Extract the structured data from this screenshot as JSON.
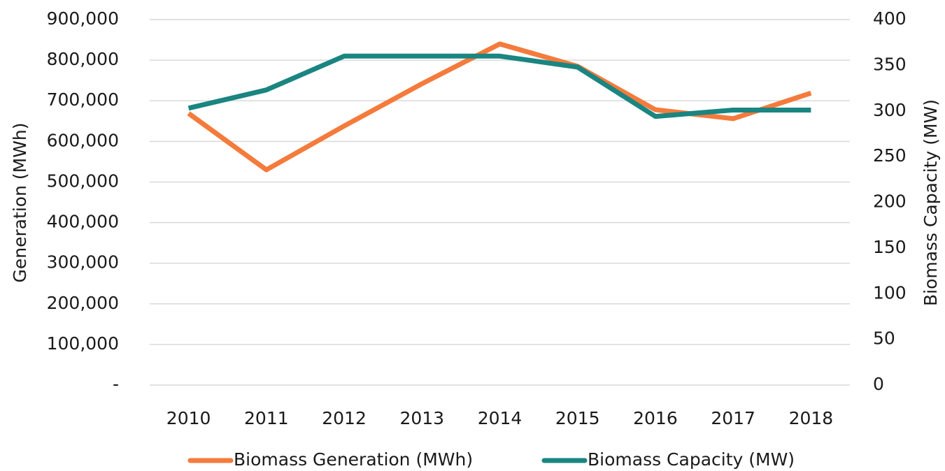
{
  "chart_data": {
    "type": "line",
    "categories": [
      "2010",
      "2011",
      "2012",
      "2013",
      "2014",
      "2015",
      "2016",
      "2017",
      "2018"
    ],
    "series": [
      {
        "name": "Biomass Generation (MWh)",
        "color": "#f47b3c",
        "values": [
          669000,
          530000,
          638000,
          742000,
          840000,
          785000,
          678000,
          656000,
          719000
        ]
      },
      {
        "name": "Biomass Capacity (MW)",
        "color": "#1a8581",
        "axis": "y2",
        "values": [
          303,
          323,
          360,
          360,
          360,
          348,
          294,
          301,
          301
        ]
      }
    ],
    "ylabel": "Generation (MWh)",
    "y2label": "Biomass Capacity (MW)",
    "ylim": [
      0,
      900000
    ],
    "yticks": [
      {
        "value": 0,
        "label": "-"
      },
      {
        "value": 100000,
        "label": "100,000"
      },
      {
        "value": 200000,
        "label": "200,000"
      },
      {
        "value": 300000,
        "label": "300,000"
      },
      {
        "value": 400000,
        "label": "400,000"
      },
      {
        "value": 500000,
        "label": "500,000"
      },
      {
        "value": 600000,
        "label": "600,000"
      },
      {
        "value": 700000,
        "label": "700,000"
      },
      {
        "value": 800000,
        "label": "800,000"
      },
      {
        "value": 900000,
        "label": "900,000"
      }
    ],
    "y2lim": [
      0,
      400
    ],
    "y2ticks": [
      0,
      50,
      100,
      150,
      200,
      250,
      300,
      350,
      400
    ],
    "grid": true,
    "legend": "bottom"
  }
}
